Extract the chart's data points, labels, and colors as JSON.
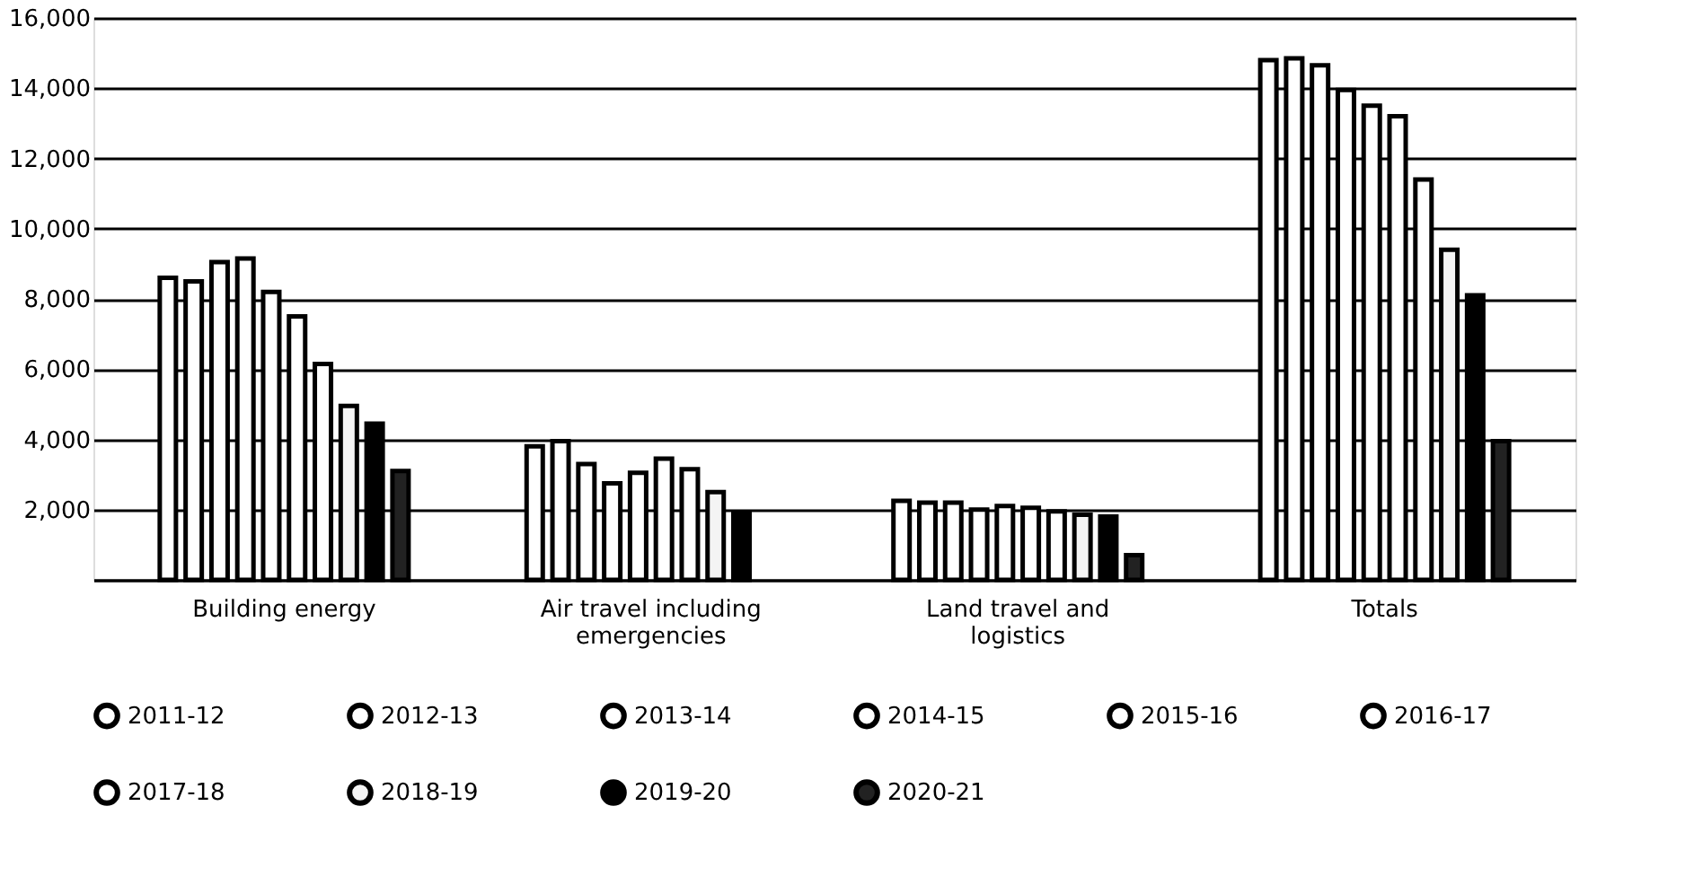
{
  "chart_data": {
    "type": "bar",
    "categories": [
      "Building energy",
      "Air travel including emergencies",
      "Land travel and logistics",
      "Totals"
    ],
    "series": [
      {
        "name": "2011-12",
        "color": "#ffffff",
        "values": [
          8600,
          3800,
          2250,
          14800
        ]
      },
      {
        "name": "2012-13",
        "color": "#ffffff",
        "values": [
          8500,
          3950,
          2200,
          14850
        ]
      },
      {
        "name": "2013-14",
        "color": "#ffffff",
        "values": [
          9050,
          3300,
          2200,
          14650
        ]
      },
      {
        "name": "2014-15",
        "color": "#ffffff",
        "values": [
          9150,
          2750,
          2000,
          13950
        ]
      },
      {
        "name": "2015-16",
        "color": "#ffffff",
        "values": [
          8200,
          3050,
          2100,
          13500
        ]
      },
      {
        "name": "2016-17",
        "color": "#ffffff",
        "values": [
          7500,
          3450,
          2050,
          13200
        ]
      },
      {
        "name": "2017-18",
        "color": "#ffffff",
        "values": [
          6150,
          3150,
          1950,
          11400
        ]
      },
      {
        "name": "2018-19",
        "color": "#f4f4f4",
        "values": [
          4950,
          2500,
          1850,
          9400
        ]
      },
      {
        "name": "2019-20",
        "color": "#000000",
        "values": [
          4450,
          1900,
          1800,
          8100
        ]
      },
      {
        "name": "2020-21",
        "color": "#222222",
        "values": [
          3100,
          null,
          700,
          3950
        ]
      }
    ],
    "ylim": [
      0,
      16000
    ],
    "yticks": [
      {
        "value": 0,
        "label": null
      },
      {
        "value": 2000,
        "label": "2,000"
      },
      {
        "value": 4000,
        "label": "4,000"
      },
      {
        "value": 6000,
        "label": "6,000"
      },
      {
        "value": 8000,
        "label": "8,000"
      },
      {
        "value": 10000,
        "label": "10,000"
      },
      {
        "value": 12000,
        "label": "12,000"
      },
      {
        "value": 14000,
        "label": "14,000"
      },
      {
        "value": 16000,
        "label": "16,000"
      }
    ],
    "grid": "y",
    "legend": "bottom"
  }
}
